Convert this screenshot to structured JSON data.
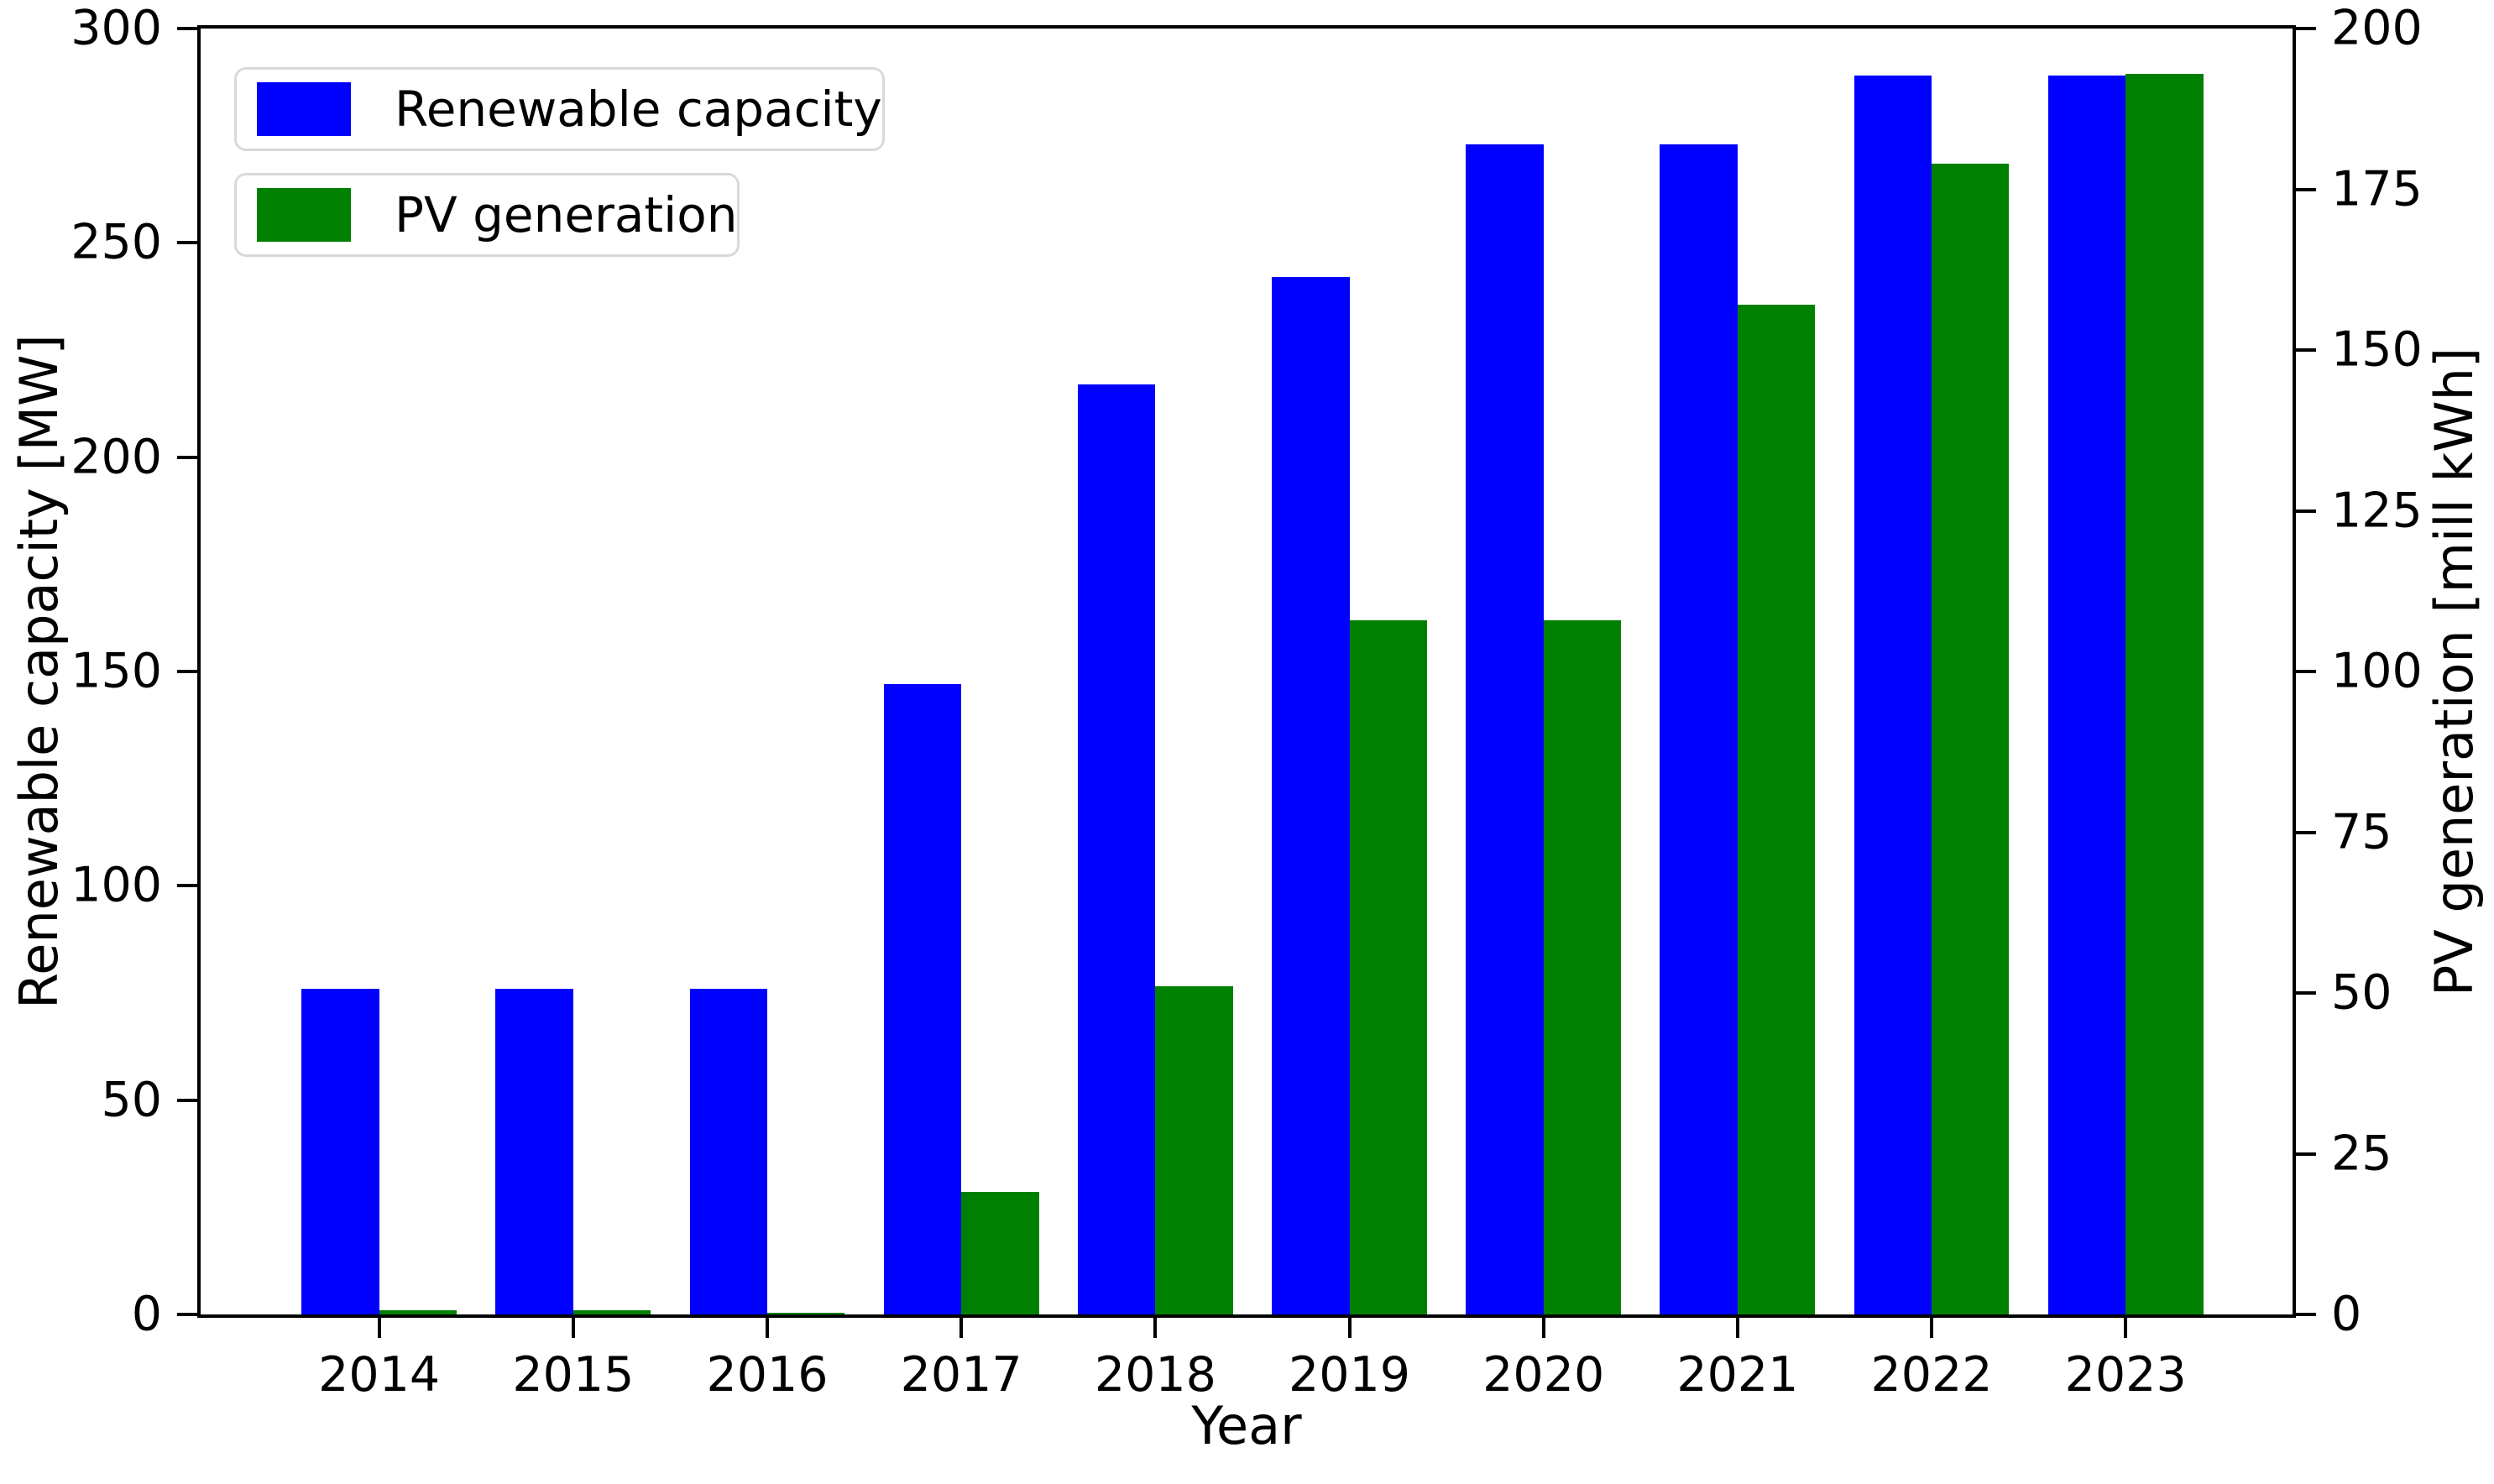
{
  "chart_data": {
    "type": "bar",
    "categories": [
      2014,
      2015,
      2016,
      2017,
      2018,
      2019,
      2020,
      2021,
      2022,
      2023
    ],
    "series": [
      {
        "name": "Renewable capacity",
        "axis": "left",
        "color": "#0000ff",
        "values": [
          76,
          76,
          76,
          147,
          217,
          242,
          273,
          273,
          289,
          289
        ]
      },
      {
        "name": "PV generation",
        "axis": "right",
        "color": "#008000",
        "values": [
          0.6,
          0.6,
          0.3,
          19,
          51,
          108,
          108,
          157,
          179,
          193
        ]
      }
    ],
    "title": "",
    "xlabel": "Year",
    "ylabel_left": "Renewable capacity [MW]",
    "ylabel_right": "PV generation [mill kWh]",
    "ylim_left": [
      0,
      300
    ],
    "ylim_right": [
      0,
      200
    ],
    "yticks_left": [
      0,
      50,
      100,
      150,
      200,
      250,
      300
    ],
    "yticks_right": [
      0,
      25,
      50,
      75,
      100,
      125,
      150,
      175,
      200
    ],
    "xlim": [
      2013.08,
      2023.86
    ],
    "bar_width": 0.4,
    "grid": false,
    "legend_position": "upper-left",
    "legend_entries": [
      "Renewable capacity",
      "PV generation"
    ]
  },
  "colors": {
    "bar_blue": "#0000ff",
    "bar_green": "#008000",
    "axis": "#000000",
    "legend_border": "#d9d9d9",
    "background": "#ffffff"
  }
}
